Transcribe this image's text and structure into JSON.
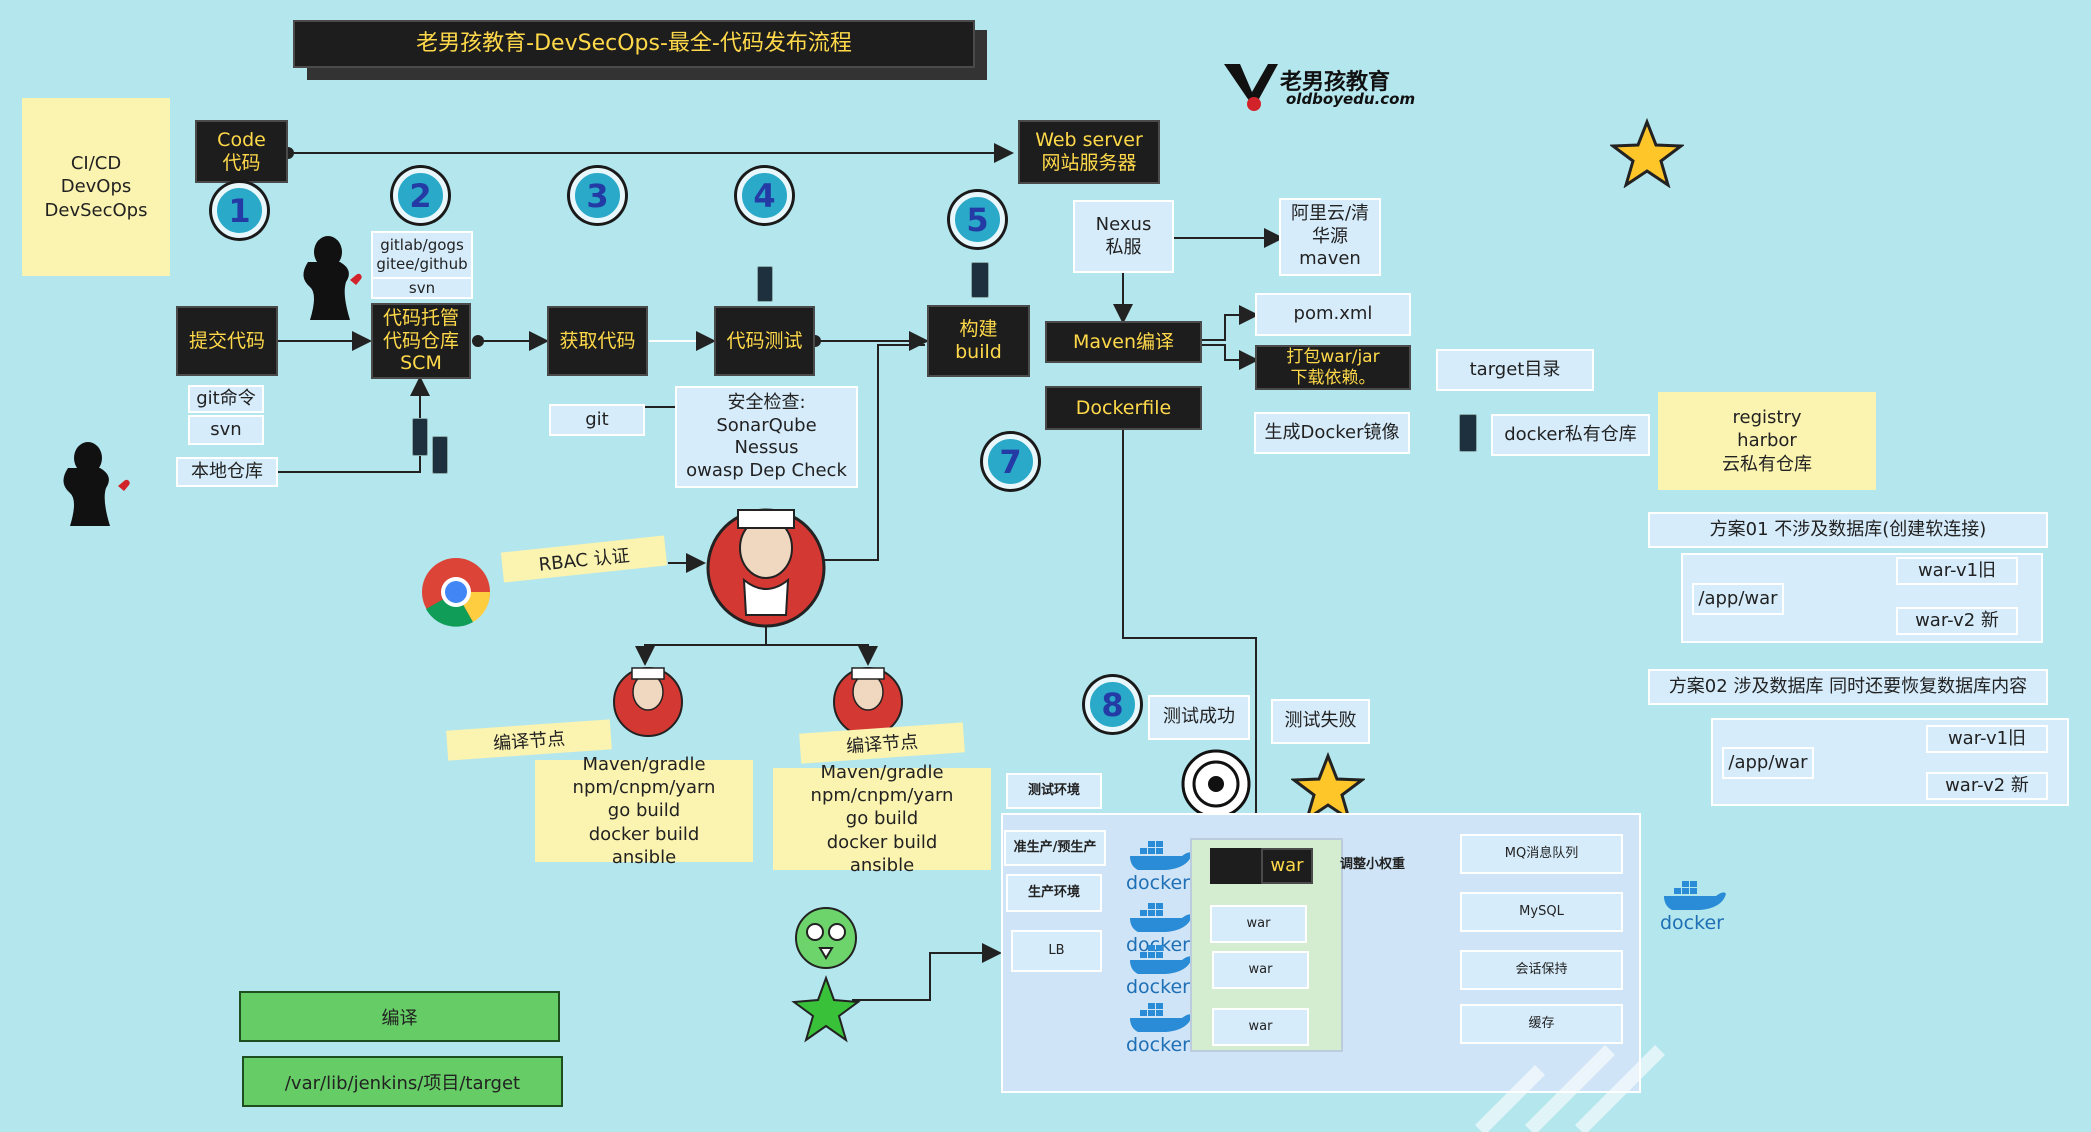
{
  "title": "老男孩教育-DevSecOps-最全-代码发布流程",
  "logo": {
    "brand": "老男孩教育",
    "site": "oldboyedu.com"
  },
  "cicd_note": "CI/CD\nDevOps\nDevSecOps",
  "code": "Code\n代码",
  "web_server": "Web server\n网站服务器",
  "steps": [
    "1",
    "2",
    "3",
    "4",
    "5",
    "7",
    "8"
  ],
  "scm_sources": [
    "gitlab/gogs\ngitee/github",
    "svn"
  ],
  "submit": "提交代码",
  "scm": "代码托管\n代码仓库\nSCM",
  "fetch": "获取代码",
  "test": "代码测试",
  "build": "构建\nbuild",
  "git_cmd": "git命令",
  "svn": "svn",
  "local_repo": "本地仓库",
  "git": "git",
  "security": "安全检查:\nSonarQube\nNessus\nowasp Dep Check",
  "rbac": "RBAC 认证",
  "nexus": "Nexus\n私服",
  "mirrors": "阿里云/清\n华源\nmaven",
  "maven": "Maven编译",
  "pom": "pom.xml",
  "package": "打包war/jar\n下载依赖。",
  "target": "target目录",
  "dockerfile": "Dockerfile",
  "docker_image": "生成Docker镜像",
  "docker_registry": "docker私有仓库",
  "registry_note": "registry\nharbor\n云私有仓库",
  "plan01": {
    "title": "方案01 不涉及数据库(创建软连接)",
    "path": "/app/war",
    "old": "war-v1旧",
    "new": "war-v2 新"
  },
  "plan02": {
    "title": "方案02  涉及数据库 同时还要恢复数据库内容",
    "path": "/app/war",
    "old": "war-v1旧",
    "new": "war-v2 新"
  },
  "build_node_label": "编译节点",
  "build_node_tools": "Maven/gradle\nnpm/cnpm/yarn\ngo build\ndocker build\nansible",
  "test_ok": "测试成功",
  "test_fail": "测试失败",
  "envs": [
    "测试环境",
    "准生产/预生产",
    "生产环境"
  ],
  "lb": "LB",
  "war_label": "war",
  "war_items": [
    "war",
    "war",
    "war"
  ],
  "adjust": "调整小权重",
  "backends": [
    "MQ消息队列",
    "MySQL",
    "会话保持",
    "缓存"
  ],
  "docker_word": "docker",
  "compile": "编译",
  "jenkins_path": "/var/lib/jenkins/项目/target",
  "colors": {
    "bg": "#b4e6ee",
    "block": "#1d1d1d",
    "block_text": "#ffd94a",
    "note": "#fbf3b0",
    "green": "#66cc66",
    "docker": "#2a8cd6"
  }
}
